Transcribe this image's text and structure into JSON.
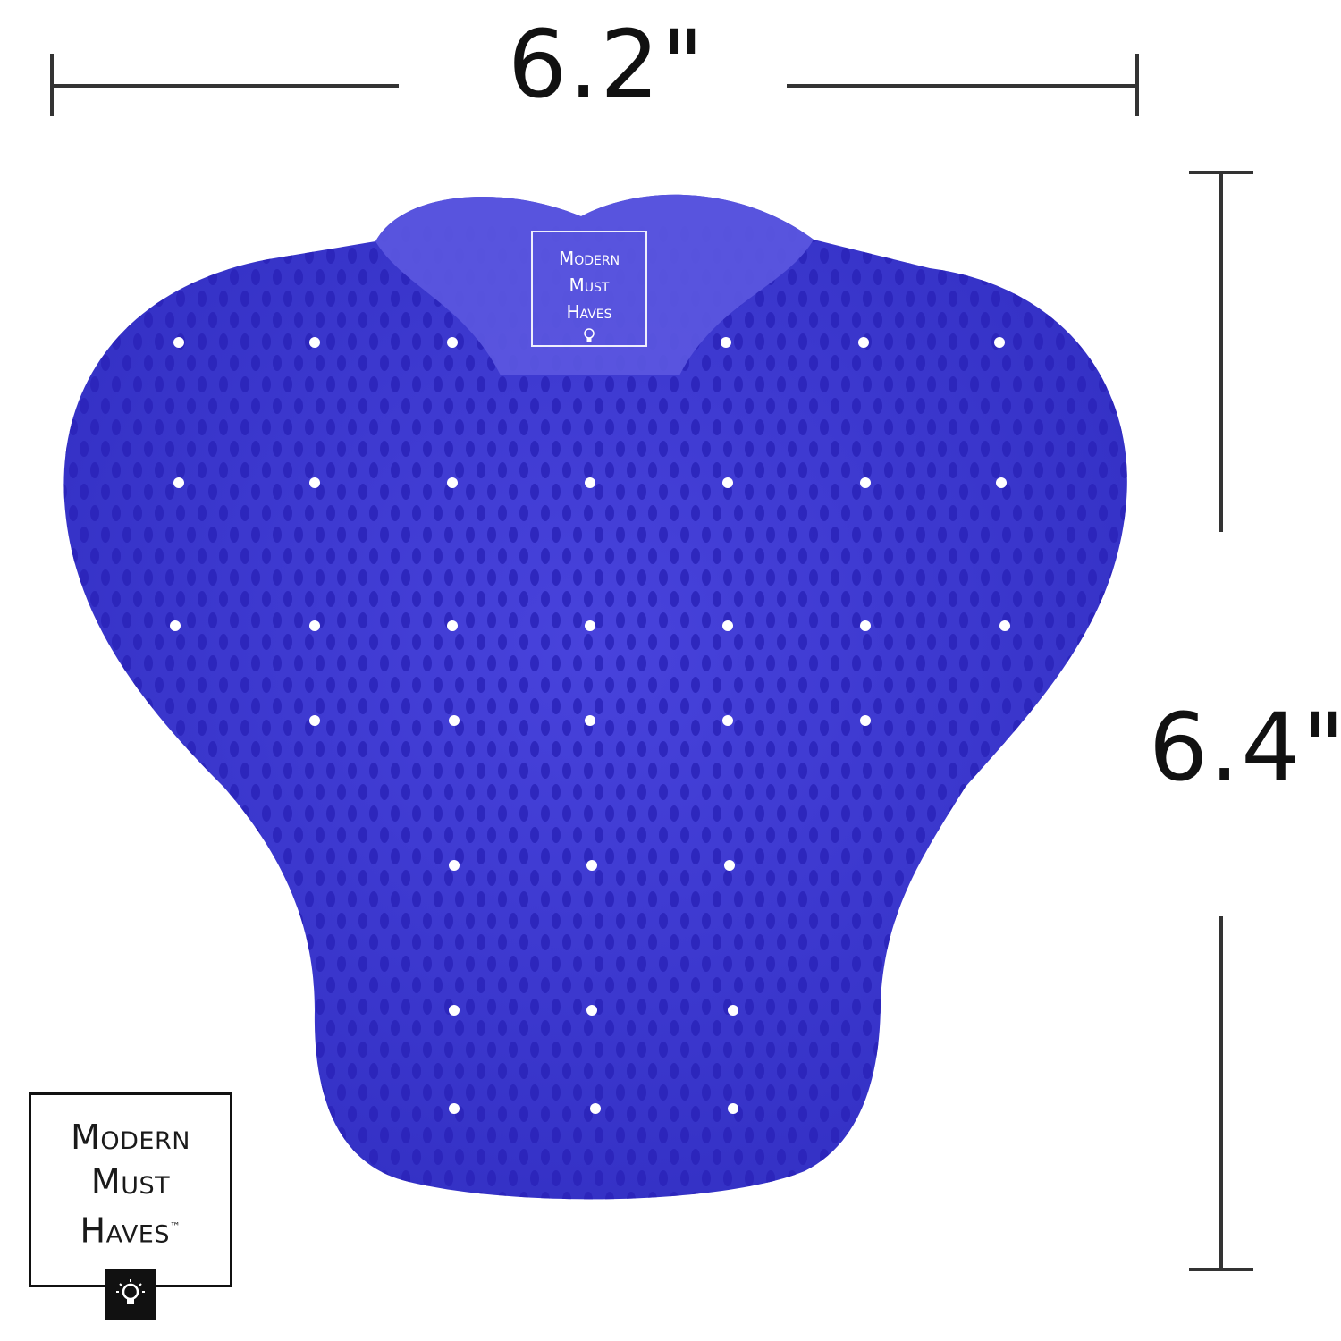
{
  "dimensions": {
    "width_label": "6.2\"",
    "height_label": "6.4\""
  },
  "brand": {
    "line1": "Modern",
    "line2": "Must",
    "line3": "Haves",
    "trademark": "™"
  },
  "colors": {
    "mat": "#3d3ad2",
    "spike": "#2a23b8",
    "hole": "#ffffff",
    "ink": "#111111"
  },
  "icons": {
    "brand_icon": "lightbulb-icon"
  }
}
